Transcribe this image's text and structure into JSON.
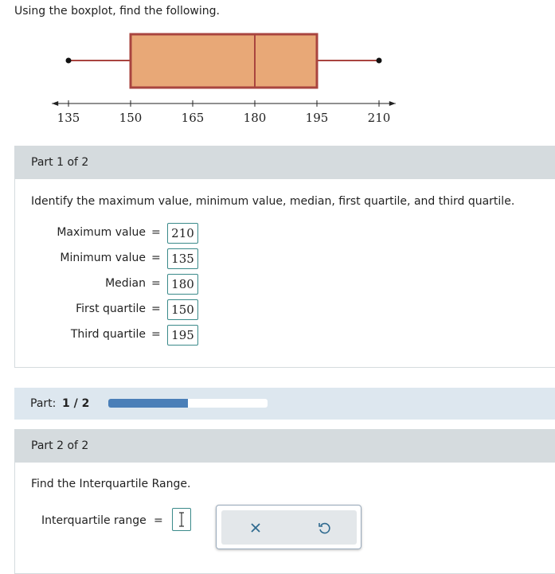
{
  "instruction": "Using the boxplot, find the following.",
  "boxplot": {
    "min": 135,
    "q1": 150,
    "median": 180,
    "q3": 195,
    "max": 210,
    "xlim": [
      131,
      214
    ],
    "xticks": [
      135,
      150,
      165,
      180,
      195,
      210
    ]
  },
  "equals": "=",
  "part1": {
    "header": "Part 1 of 2",
    "prompt": "Identify the maximum value, minimum value, median, first quartile, and third quartile.",
    "fields": [
      {
        "label": "Maximum value",
        "answer": 210
      },
      {
        "label": "Minimum value",
        "answer": 135
      },
      {
        "label": "Median",
        "answer": 180
      },
      {
        "label": "First quartile",
        "answer": 150
      },
      {
        "label": "Third quartile",
        "answer": 195
      }
    ]
  },
  "progress": {
    "label": "Part:",
    "value": "1 / 2"
  },
  "part2": {
    "header": "Part 2 of 2",
    "prompt": "Find the Interquartile Range.",
    "field_label": "Interquartile range"
  }
}
